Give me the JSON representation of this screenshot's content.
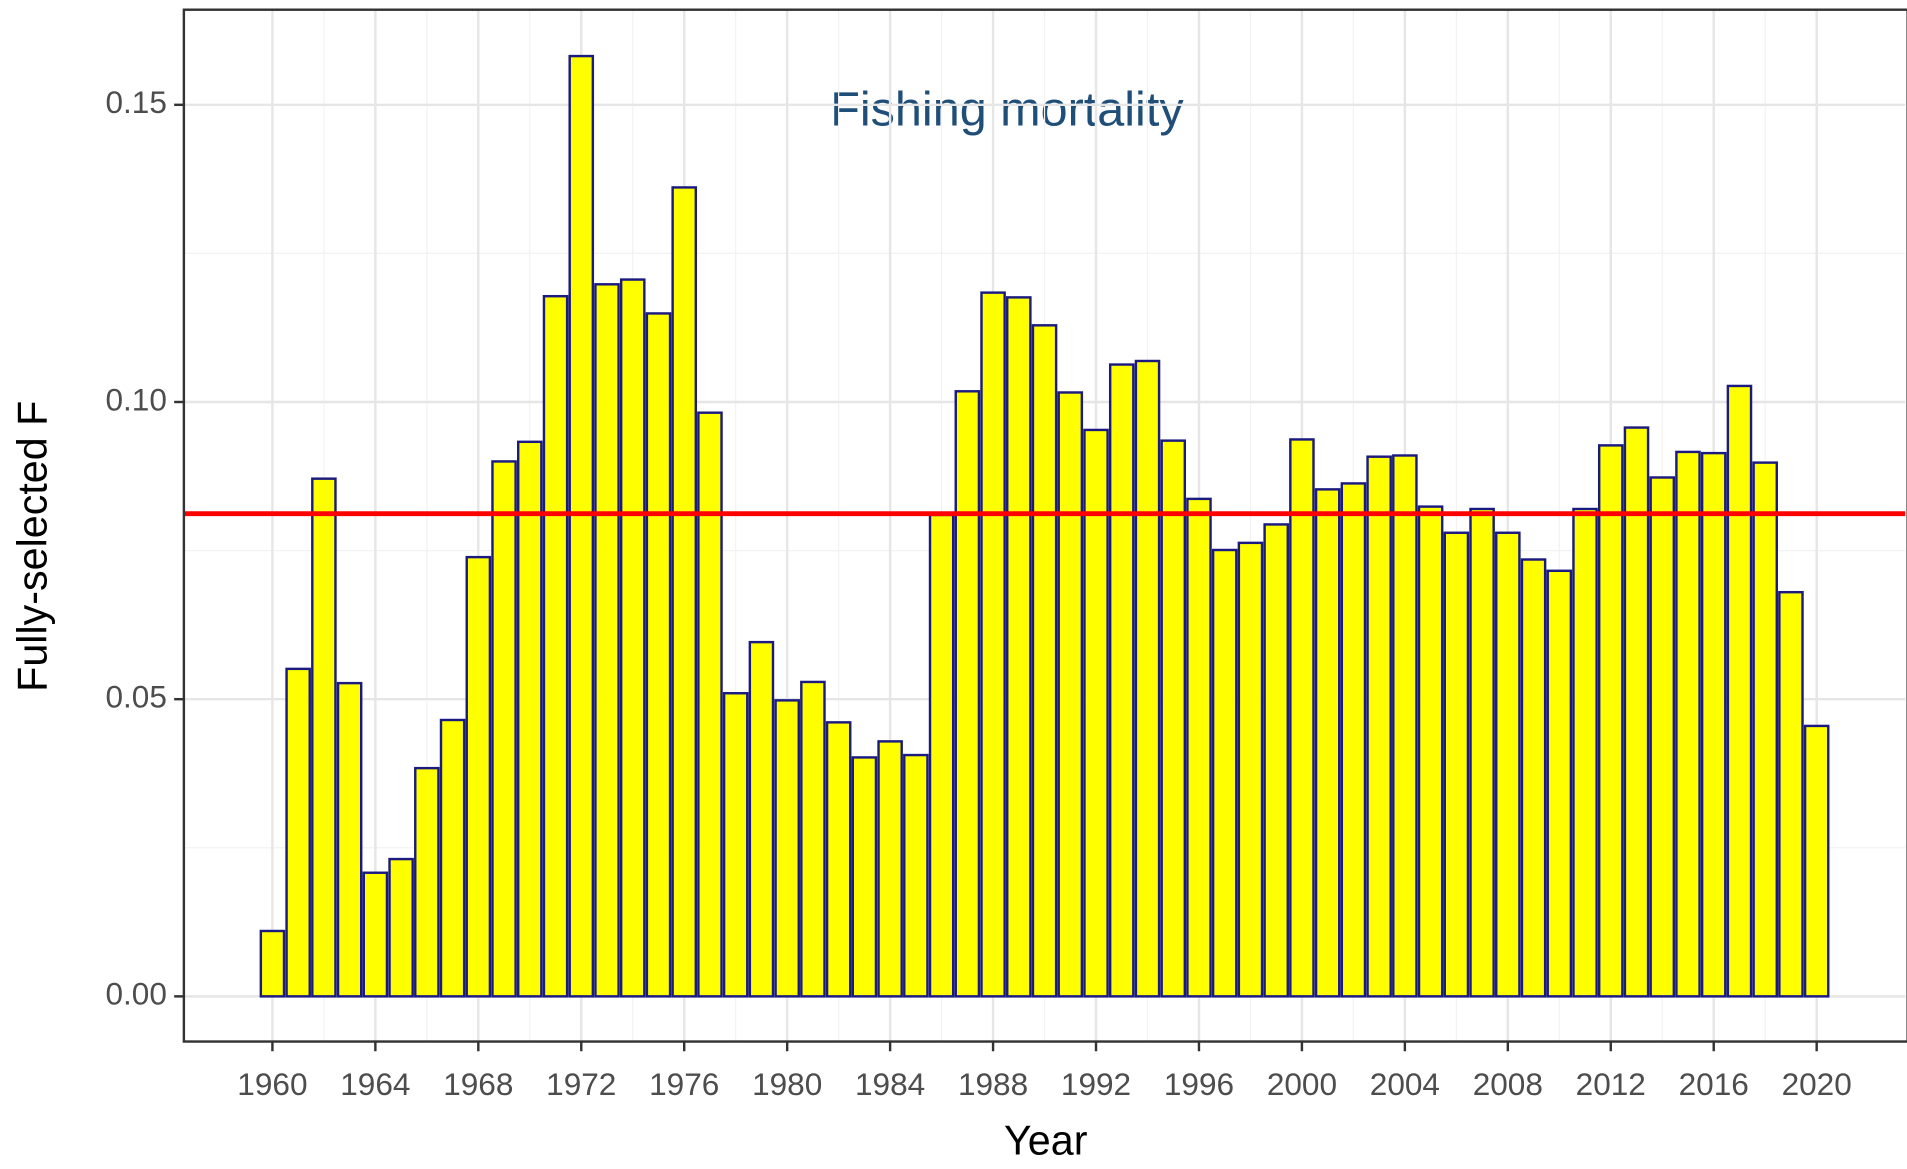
{
  "chart_data": {
    "type": "bar",
    "title": "Fishing mortality",
    "x_label": "Year",
    "y_label": "Fully-selected F",
    "x": [
      1960,
      1961,
      1962,
      1963,
      1964,
      1965,
      1966,
      1967,
      1968,
      1969,
      1970,
      1971,
      1972,
      1973,
      1974,
      1975,
      1976,
      1977,
      1978,
      1979,
      1980,
      1981,
      1982,
      1983,
      1984,
      1985,
      1986,
      1987,
      1988,
      1989,
      1990,
      1991,
      1992,
      1993,
      1994,
      1995,
      1996,
      1997,
      1998,
      1999,
      2000,
      2001,
      2002,
      2003,
      2004,
      2005,
      2006,
      2007,
      2008,
      2009,
      2010,
      2011,
      2012,
      2013,
      2014,
      2015,
      2016,
      2017,
      2018,
      2019,
      2020
    ],
    "values": [
      0.011,
      0.0551,
      0.0871,
      0.0527,
      0.0208,
      0.0231,
      0.0384,
      0.0465,
      0.0739,
      0.09,
      0.0933,
      0.1178,
      0.1582,
      0.1198,
      0.1206,
      0.1149,
      0.1361,
      0.0982,
      0.051,
      0.0596,
      0.0498,
      0.0529,
      0.0461,
      0.0402,
      0.0429,
      0.0406,
      0.081,
      0.1018,
      0.1184,
      0.1176,
      0.1129,
      0.1016,
      0.0953,
      0.1063,
      0.1069,
      0.0935,
      0.0837,
      0.0751,
      0.0763,
      0.0794,
      0.0937,
      0.0853,
      0.0863,
      0.0908,
      0.091,
      0.0824,
      0.078,
      0.082,
      0.078,
      0.0735,
      0.0716,
      0.082,
      0.0927,
      0.0957,
      0.0873,
      0.0916,
      0.0914,
      0.1027,
      0.0898,
      0.068,
      0.0455
    ],
    "color": "#ffff00",
    "edge_color": "#1a1a80",
    "hline": 0.0812,
    "hline_color": "#ff0000",
    "xlim": [
      1956.56,
      2023.44
    ],
    "xticks": [
      1960,
      1964,
      1968,
      1972,
      1976,
      1980,
      1984,
      1988,
      1992,
      1996,
      2000,
      2004,
      2008,
      2012,
      2016,
      2020
    ],
    "ylim": [
      -0.0076,
      0.166
    ],
    "yticks": [
      {
        "value": 0,
        "label": "0.00"
      },
      0.05,
      {
        "value": 0.1,
        "label": "0.10"
      },
      0.15
    ],
    "grid": true
  }
}
